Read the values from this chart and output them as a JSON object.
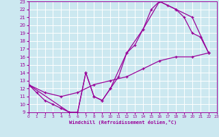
{
  "xlabel": "Windchill (Refroidissement éolien,°C)",
  "ylabel": "",
  "xlim": [
    0,
    23
  ],
  "ylim": [
    9,
    23
  ],
  "xticks": [
    0,
    1,
    2,
    3,
    4,
    5,
    6,
    7,
    8,
    9,
    10,
    11,
    12,
    13,
    14,
    15,
    16,
    17,
    18,
    19,
    20,
    21,
    22,
    23
  ],
  "yticks": [
    9,
    10,
    11,
    12,
    13,
    14,
    15,
    16,
    17,
    18,
    19,
    20,
    21,
    22,
    23
  ],
  "line_color": "#990099",
  "bg_color": "#cce8f0",
  "grid_color": "#ffffff",
  "line1": [
    [
      0,
      12.5
    ],
    [
      1,
      11.5
    ],
    [
      2,
      10.5
    ],
    [
      3,
      10.0
    ],
    [
      4,
      9.5
    ],
    [
      5,
      9.0
    ],
    [
      6,
      9.0
    ],
    [
      7,
      14.0
    ],
    [
      8,
      11.0
    ],
    [
      9,
      10.5
    ],
    [
      10,
      12.0
    ],
    [
      11,
      13.5
    ],
    [
      12,
      16.5
    ],
    [
      13,
      17.5
    ],
    [
      14,
      19.5
    ],
    [
      15,
      22.0
    ],
    [
      16,
      23.0
    ],
    [
      17,
      22.5
    ],
    [
      18,
      22.0
    ],
    [
      19,
      21.0
    ],
    [
      20,
      19.0
    ],
    [
      21,
      18.5
    ],
    [
      22,
      16.5
    ]
  ],
  "line2": [
    [
      0,
      12.5
    ],
    [
      2,
      11.5
    ],
    [
      4,
      11.0
    ],
    [
      6,
      11.5
    ],
    [
      8,
      12.5
    ],
    [
      10,
      13.0
    ],
    [
      12,
      13.5
    ],
    [
      14,
      14.5
    ],
    [
      16,
      15.5
    ],
    [
      18,
      16.0
    ],
    [
      20,
      16.0
    ],
    [
      22,
      16.5
    ]
  ],
  "line3": [
    [
      0,
      12.5
    ],
    [
      5,
      9.0
    ],
    [
      6,
      9.0
    ],
    [
      7,
      14.0
    ],
    [
      8,
      11.0
    ],
    [
      9,
      10.5
    ],
    [
      10,
      12.0
    ],
    [
      12,
      16.5
    ],
    [
      14,
      19.5
    ],
    [
      16,
      23.0
    ],
    [
      18,
      22.0
    ],
    [
      20,
      21.0
    ],
    [
      22,
      16.5
    ]
  ]
}
